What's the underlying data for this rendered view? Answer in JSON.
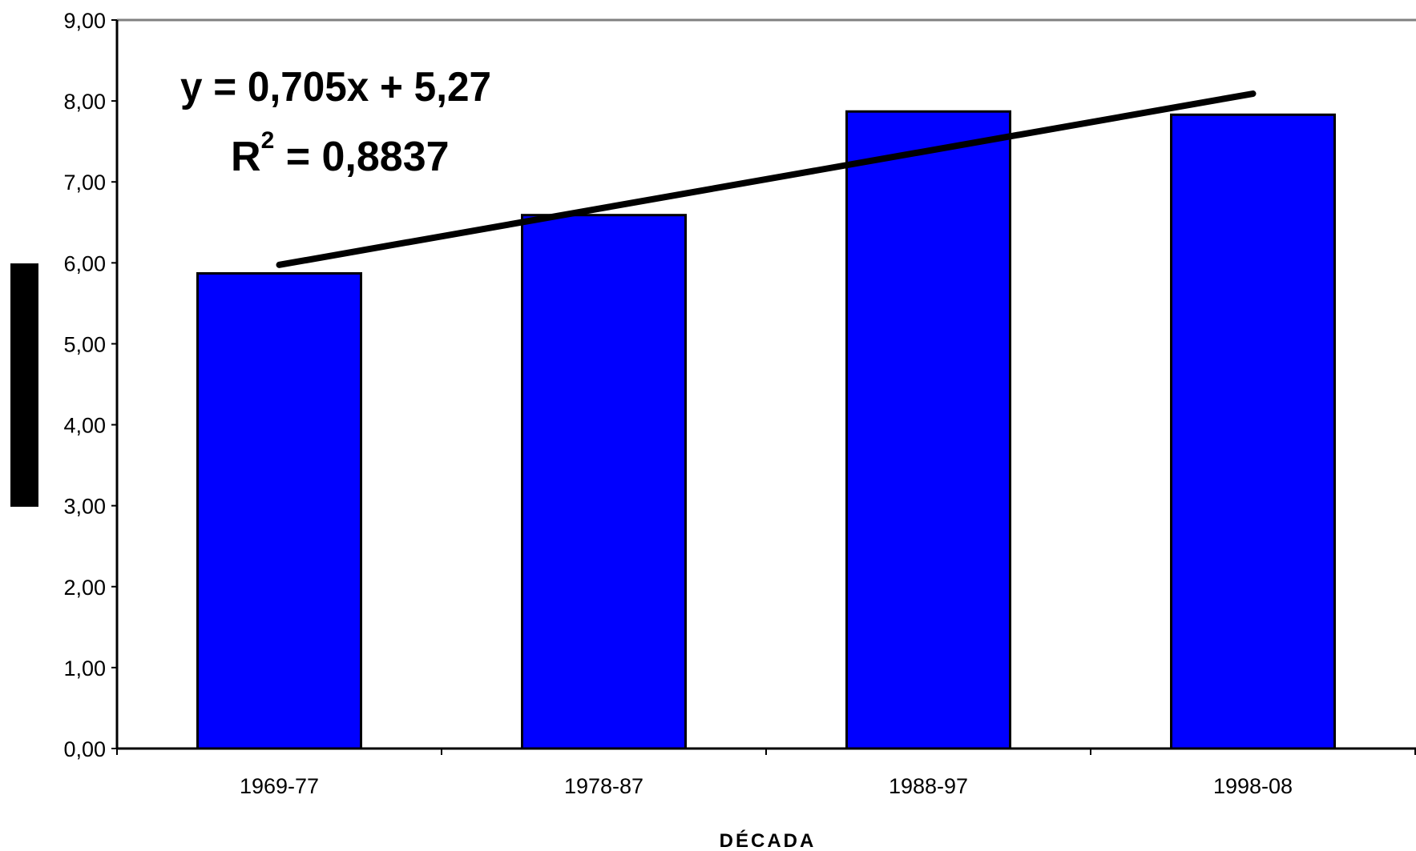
{
  "chart_data": {
    "type": "bar",
    "categories": [
      "1969-77",
      "1978-87",
      "1988-97",
      "1998-08"
    ],
    "values": [
      5.87,
      6.59,
      7.87,
      7.83
    ],
    "xlabel": "DÉCADA",
    "ylabel": "",
    "ylim": [
      0,
      9
    ],
    "yticks": [
      "0,00",
      "1,00",
      "2,00",
      "3,00",
      "4,00",
      "5,00",
      "6,00",
      "7,00",
      "8,00",
      "9,00"
    ],
    "grid": false,
    "bar_color": "#0000ff",
    "trendline": {
      "slope": 0.705,
      "intercept": 5.27,
      "equation_label": "y = 0,705x + 5,27",
      "r2_prefix": "R",
      "r2_sup": "2",
      "r2_value": " = 0,8837"
    }
  }
}
